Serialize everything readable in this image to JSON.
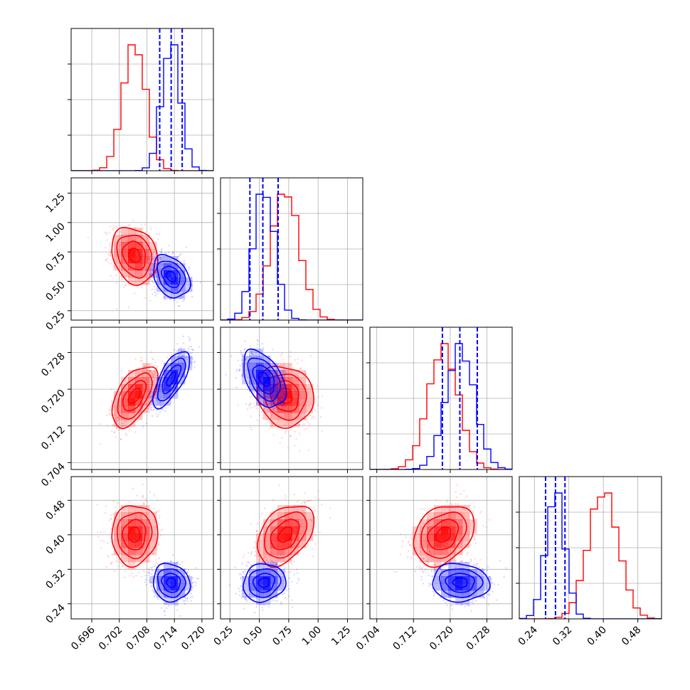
{
  "chart_data": {
    "type": "corner",
    "title": "",
    "parameters": [
      {
        "ticks": [
          0.696,
          0.702,
          0.708,
          0.714,
          0.72
        ],
        "tick_labels": [
          "0.696",
          "0.702",
          "0.708",
          "0.714",
          "0.720"
        ],
        "range": [
          0.6915,
          0.7225
        ]
      },
      {
        "ticks": [
          0.25,
          0.5,
          0.75,
          1.0,
          1.25
        ],
        "tick_labels": [
          "0.25",
          "0.50",
          "0.75",
          "1.00",
          "1.25"
        ],
        "range": [
          0.17,
          1.38
        ]
      },
      {
        "ticks": [
          0.704,
          0.712,
          0.72,
          0.728
        ],
        "tick_labels": [
          "0.704",
          "0.712",
          "0.720",
          "0.728"
        ],
        "range": [
          0.7025,
          0.7335
        ]
      },
      {
        "ticks": [
          0.24,
          0.32,
          0.4,
          0.48
        ],
        "tick_labels": [
          "0.24",
          "0.32",
          "0.40",
          "0.48"
        ],
        "range": [
          0.205,
          0.535
        ]
      }
    ],
    "grid": true,
    "legend": "none",
    "series": [
      {
        "color": "#ff0000",
        "mean": [
          0.7053,
          0.72,
          0.7185,
          0.4
        ],
        "std": [
          0.0025,
          0.12,
          0.0033,
          0.035
        ],
        "corr": [
          [
            1,
            -0.2,
            0.55,
            0.05
          ],
          [
            -0.2,
            1,
            -0.1,
            0.4
          ],
          [
            0.55,
            -0.1,
            1,
            0.3
          ],
          [
            0.05,
            0.4,
            0.3,
            1
          ]
        ],
        "quantiles": []
      },
      {
        "color": "#0000ff",
        "mean": [
          0.7133,
          0.54,
          0.7222,
          0.289
        ],
        "std": [
          0.002,
          0.09,
          0.0031,
          0.022
        ],
        "corr": [
          [
            1,
            -0.3,
            0.7,
            -0.1
          ],
          [
            -0.3,
            1,
            -0.45,
            0.1
          ],
          [
            0.7,
            -0.45,
            1,
            -0.05
          ],
          [
            -0.1,
            0.1,
            -0.05,
            1
          ]
        ],
        "quantiles": [
          [
            0.7108,
            0.7133,
            0.7157
          ],
          [
            0.42,
            0.53,
            0.66
          ],
          [
            0.7183,
            0.7221,
            0.7259
          ],
          [
            0.266,
            0.289,
            0.311
          ]
        ]
      }
    ]
  }
}
